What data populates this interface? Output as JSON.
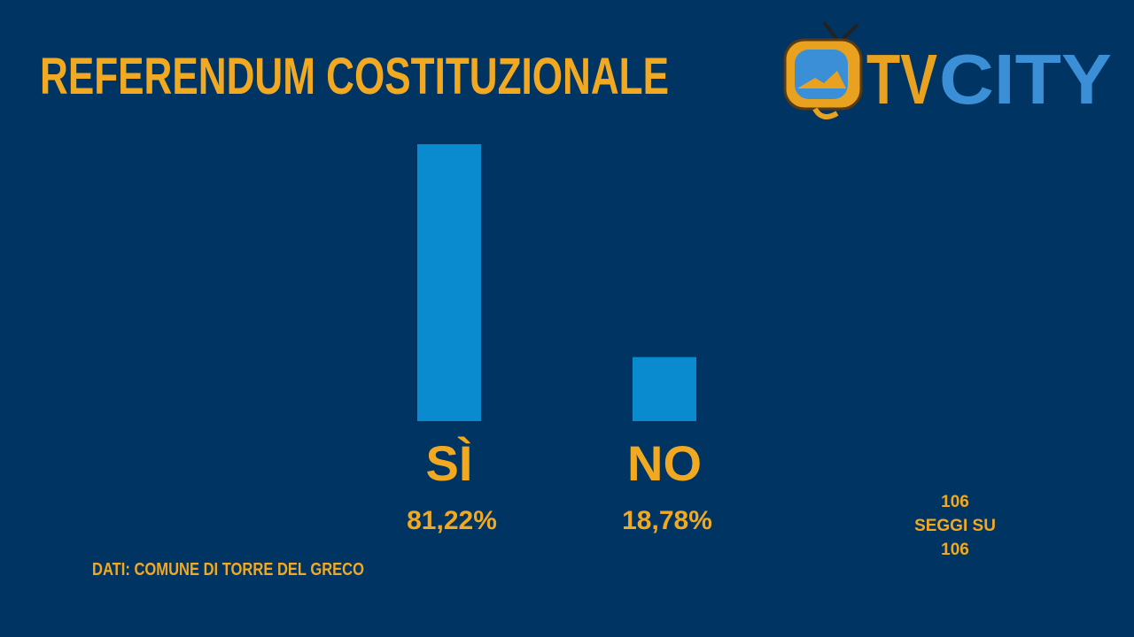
{
  "chart_data": {
    "type": "bar",
    "title": "REFERENDUM COSTITUZIONALE",
    "categories": [
      "SÌ",
      "NO"
    ],
    "values": [
      81.22,
      18.78
    ],
    "value_labels": [
      "81,22%",
      "18,78%"
    ],
    "color": "#0a8bd0",
    "source": "DATI: COMUNE DI TORRE DEL GRECO",
    "note": [
      "106",
      "SEGGI SU",
      "106"
    ]
  },
  "logo": {
    "part1": "TV",
    "part2": "CITY"
  }
}
